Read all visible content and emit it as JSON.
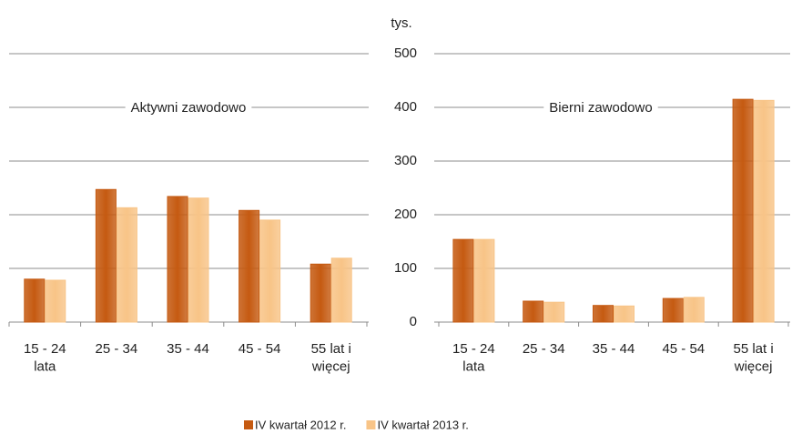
{
  "chart_data": [
    {
      "type": "bar",
      "annotation": "Aktywni zawodowo",
      "categories": [
        "15 - 24\nlata",
        "25 - 34",
        "35 - 44",
        "45 - 54",
        "55 lat i\nwięcej"
      ],
      "series": [
        {
          "name": "IV kwartał 2012 r.",
          "color": "#c55a11",
          "values": [
            80,
            247,
            234,
            208,
            108
          ]
        },
        {
          "name": "IV kwartał 2013 r.",
          "color": "#f8c487",
          "values": [
            78,
            213,
            231,
            190,
            119
          ]
        }
      ],
      "ylim": [
        0,
        500
      ],
      "yticks": [
        0,
        100,
        200,
        300,
        400,
        500
      ],
      "grid": true
    },
    {
      "type": "bar",
      "annotation": "Bierni zawodowo",
      "y_axis_label": "tys.",
      "categories": [
        "15 - 24\nlata",
        "25 - 34",
        "35 - 44",
        "45 - 54",
        "55 lat i\nwięcej"
      ],
      "series": [
        {
          "color": "#c55a11",
          "values": [
            154,
            39,
            31,
            44,
            415
          ]
        },
        {
          "color": "#f8c487",
          "values": [
            154,
            37,
            30,
            46,
            413
          ]
        }
      ],
      "ylim": [
        0,
        500
      ],
      "yticks": [
        0,
        100,
        200,
        300,
        400,
        500
      ],
      "grid": true
    }
  ]
}
